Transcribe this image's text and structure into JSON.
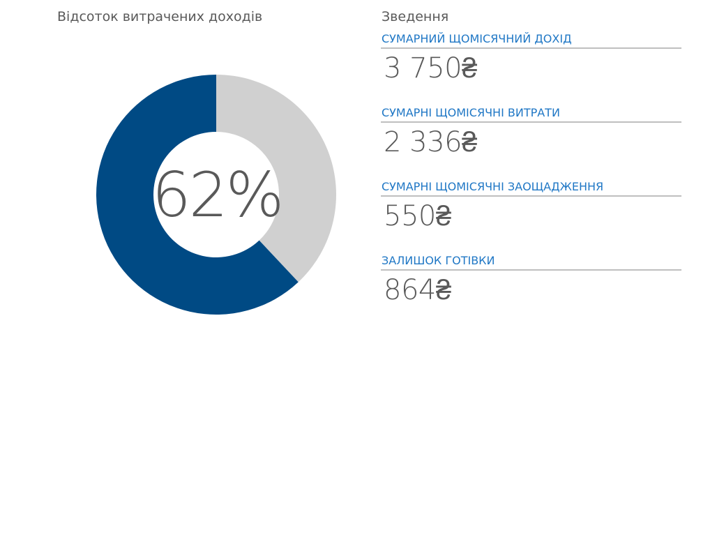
{
  "chart": {
    "title": "Відсоток витрачених доходів",
    "center_label": "62%",
    "colors": {
      "spent": "#004a84",
      "remaining": "#d0d0d0"
    }
  },
  "chart_data": {
    "type": "pie",
    "title": "Відсоток витрачених доходів",
    "values": [
      62,
      38
    ],
    "colors": [
      "#004a84",
      "#d0d0d0"
    ]
  },
  "summary": {
    "title": "Зведення",
    "items": [
      {
        "label": "СУМАРНИЙ ЩОМІСЯЧНИЙ ДОХІД",
        "value": "3 750₴"
      },
      {
        "label": "СУМАРНІ ЩОМІСЯЧНІ ВИТРАТИ",
        "value": "2 336₴"
      },
      {
        "label": "СУМАРНІ ЩОМІСЯЧНІ ЗАОЩАДЖЕННЯ",
        "value": "550₴"
      },
      {
        "label": "ЗАЛИШОК ГОТІВКИ",
        "value": "864₴"
      }
    ]
  }
}
